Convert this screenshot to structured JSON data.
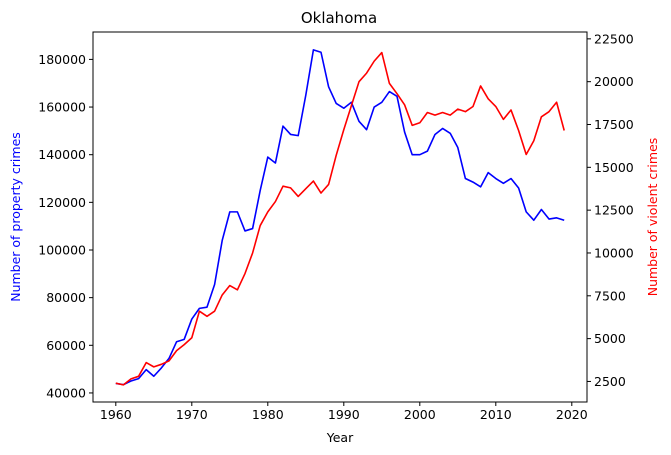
{
  "chart_data": {
    "type": "line",
    "title": "Oklahoma",
    "xlabel": "Year",
    "ylabel_left": "Number of property crimes",
    "ylabel_right": "Number of violent crimes",
    "xlim": [
      1957,
      2022
    ],
    "ylim_left": [
      36200,
      191500
    ],
    "ylim_right": [
      1300,
      22900
    ],
    "x_ticks": [
      1960,
      1970,
      1980,
      1990,
      2000,
      2010,
      2020
    ],
    "y_left_ticks": [
      40000,
      60000,
      80000,
      100000,
      120000,
      140000,
      160000,
      180000
    ],
    "y_right_ticks": [
      2500,
      5000,
      7500,
      10000,
      12500,
      15000,
      17500,
      20000,
      22500
    ],
    "grid": false,
    "colors": {
      "property": "#0000ff",
      "violent": "#ff0000",
      "axis": "#000000"
    },
    "x": [
      1960,
      1961,
      1962,
      1963,
      1964,
      1965,
      1966,
      1967,
      1968,
      1969,
      1970,
      1971,
      1972,
      1973,
      1974,
      1975,
      1976,
      1977,
      1978,
      1979,
      1980,
      1981,
      1982,
      1983,
      1984,
      1985,
      1986,
      1987,
      1988,
      1989,
      1990,
      1991,
      1992,
      1993,
      1994,
      1995,
      1996,
      1997,
      1998,
      1999,
      2000,
      2001,
      2002,
      2003,
      2004,
      2005,
      2006,
      2007,
      2008,
      2009,
      2010,
      2011,
      2012,
      2013,
      2014,
      2015,
      2016,
      2017,
      2018,
      2019
    ],
    "series": [
      {
        "axis": "left",
        "color": "#0000ff",
        "values": [
          44000,
          43500,
          45000,
          46000,
          49800,
          47000,
          50500,
          54500,
          61500,
          62500,
          71000,
          75500,
          76000,
          85500,
          104000,
          116000,
          116000,
          108000,
          109000,
          125000,
          139000,
          136500,
          152000,
          148500,
          148000,
          165000,
          184000,
          183000,
          168500,
          161500,
          159500,
          162000,
          154000,
          150500,
          160000,
          162000,
          166500,
          164500,
          149500,
          140000,
          140000,
          141500,
          148500,
          151000,
          149000,
          143000,
          130000,
          128500,
          126500,
          132500,
          130000,
          128000,
          130000,
          126000,
          116000,
          112500,
          117000,
          113000,
          113500,
          112500
        ]
      },
      {
        "axis": "right",
        "color": "#ff0000",
        "values": [
          2400,
          2300,
          2650,
          2800,
          3600,
          3350,
          3500,
          3700,
          4300,
          4650,
          5050,
          6600,
          6300,
          6600,
          7550,
          8100,
          7850,
          8800,
          10000,
          11600,
          12400,
          13000,
          13900,
          13800,
          13300,
          13750,
          14200,
          13500,
          14000,
          15700,
          17200,
          18600,
          20000,
          20500,
          21200,
          21700,
          19900,
          19300,
          18650,
          17450,
          17600,
          18200,
          18050,
          18200,
          18050,
          18400,
          18250,
          18550,
          19750,
          19000,
          18550,
          17800,
          18350,
          17150,
          15750,
          16550,
          17950,
          18250,
          18800,
          17150
        ]
      }
    ]
  }
}
